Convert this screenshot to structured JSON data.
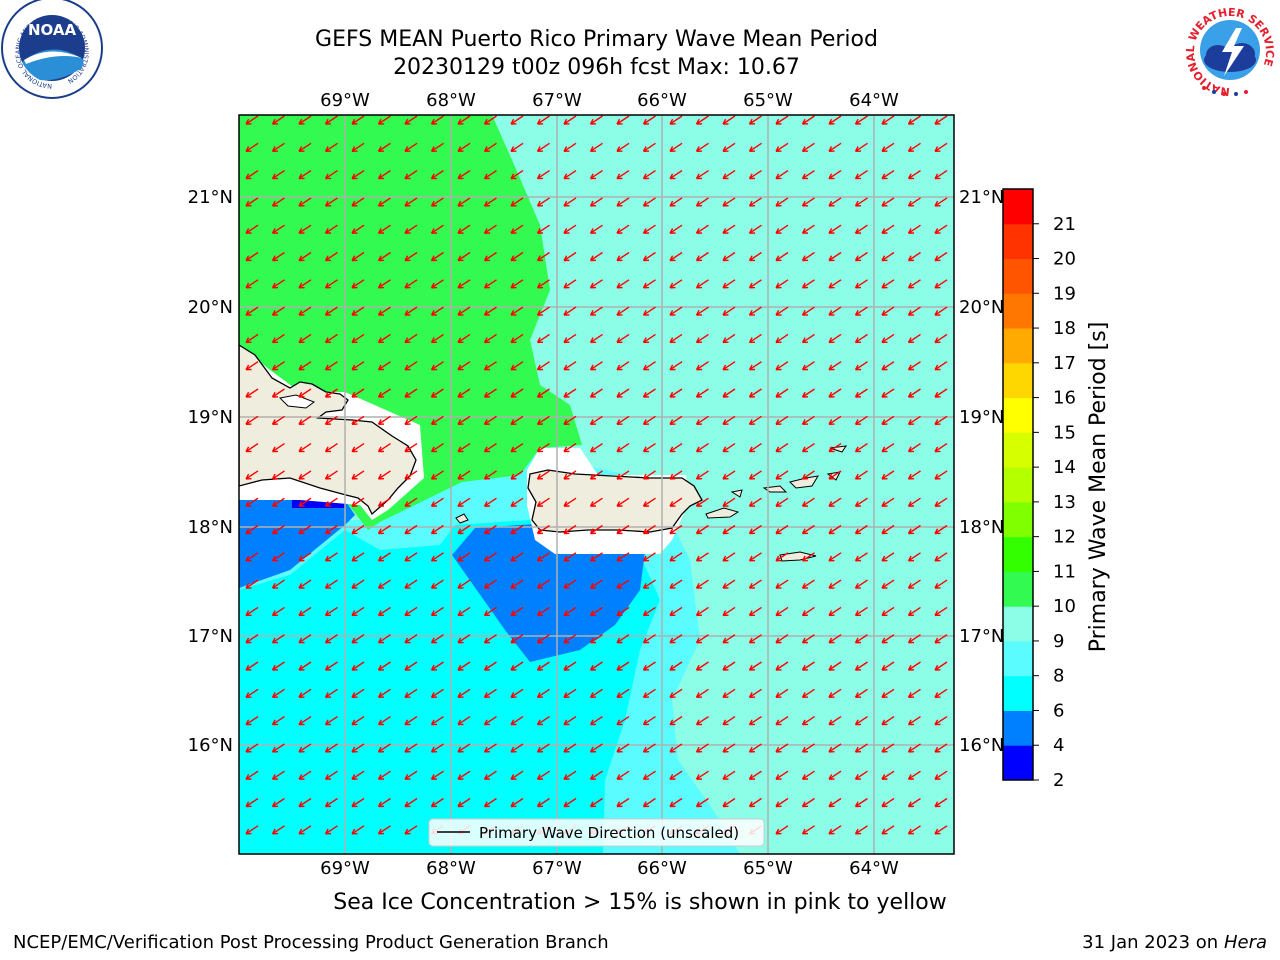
{
  "title_line1": "GEFS MEAN Puerto Rico Primary Wave Mean Period",
  "title_line2": "20230129 t00z 096h fcst   Max: 10.67",
  "lon_ticks": [
    "69°W",
    "68°W",
    "67°W",
    "66°W",
    "65°W",
    "64°W"
  ],
  "lat_ticks": [
    "21°N",
    "20°N",
    "19°N",
    "18°N",
    "17°N",
    "16°N"
  ],
  "legend_label": "Primary Wave Direction (unscaled)",
  "colorbar": {
    "label": "Primary Wave Mean Period [s]",
    "ticks": [
      "2",
      "4",
      "6",
      "8",
      "9",
      "10",
      "11",
      "12",
      "13",
      "14",
      "15",
      "16",
      "17",
      "18",
      "19",
      "20",
      "21"
    ],
    "colors": [
      "#0000ff",
      "#0080ff",
      "#00ffff",
      "#5afcff",
      "#8cfde6",
      "#32fa50",
      "#33ff00",
      "#80ff00",
      "#b4ff00",
      "#d6ff00",
      "#ffff00",
      "#ffd700",
      "#ffaa00",
      "#ff7700",
      "#ff5500",
      "#ff3300",
      "#ff0000"
    ]
  },
  "colors": {
    "land": "#efedde",
    "wave_arrow": "#ff0000",
    "period_10_11": "#32fa50",
    "period_9_10": "#8cfde6",
    "period_8_9": "#5afcff",
    "period_6_8": "#00ffff",
    "period_4_6": "#0080ff"
  },
  "caption": "Sea Ice Concentration > 15% is shown in pink to yellow",
  "footer_left": "NCEP/EMC/Verification Post Processing Product Generation Branch",
  "footer_date": "31 Jan 2023 on ",
  "footer_machine": "Hera",
  "logos": {
    "noaa_text": "NOAA",
    "noaa_ring": "NATIONAL OCEANIC AND ATMOSPHERIC ADMINISTRATION",
    "noaa_ring_bottom": "U.S. DEPARTMENT OF COMMERCE",
    "nws_ring": "NATIONAL WEATHER SERVICE"
  }
}
